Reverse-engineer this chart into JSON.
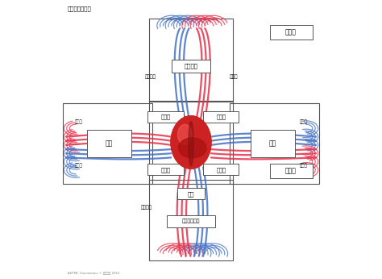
{
  "arterial_color": "#e8304a",
  "venous_color": "#4472c4",
  "cross_color": "#555555",
  "heart_color": "#cc2222",
  "labels": {
    "title": "肺循环和体循环",
    "top_right_box": "体循环",
    "top_center_box": "肺动脉管",
    "upper_left_label": "上腔静脉",
    "upper_right_label": "主动脉",
    "right_atrium": "右心房",
    "left_atrium": "左心房",
    "left_lung_box": "右肺",
    "right_lung_box": "左肺",
    "left_top_label": "肺动脉",
    "right_top_label": "肺动脉",
    "left_bot_label": "肺静脉",
    "right_bot_label": "肺静脉",
    "right_ventricle": "右心室",
    "left_ventricle": "左心室",
    "heart_label": "心脏",
    "bottom_right_box": "肠循环",
    "inferior_vena_label": "下腔静脉",
    "hepatic_portal_box": "肝门静脉循环",
    "copyright": "AHTML Connexions © 肺循环路 2012"
  }
}
